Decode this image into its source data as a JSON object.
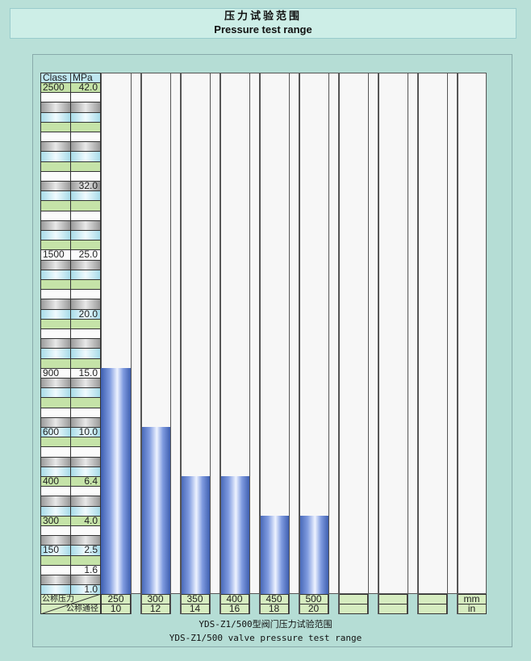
{
  "title": {
    "cn": "压力试验范围",
    "en": "Pressure test range"
  },
  "chart_data": {
    "type": "bar",
    "title": "YDS-Z1/500型阀门压力试验范围",
    "subtitle": "YDS-Z1/500 valve pressure test range",
    "header": {
      "class": "Class",
      "mpa": "MPa"
    },
    "scale_labels": [
      {
        "row": 0,
        "class": "2500",
        "mpa": "42.0"
      },
      {
        "row": 10,
        "class": "",
        "mpa": "32.0"
      },
      {
        "row": 17,
        "class": "1500",
        "mpa": "25.0"
      },
      {
        "row": 23,
        "class": "",
        "mpa": "20.0"
      },
      {
        "row": 29,
        "class": "900",
        "mpa": "15.0"
      },
      {
        "row": 35,
        "class": "600",
        "mpa": "10.0"
      },
      {
        "row": 40,
        "class": "400",
        "mpa": "6.4"
      },
      {
        "row": 44,
        "class": "300",
        "mpa": "4.0"
      },
      {
        "row": 47,
        "class": "150",
        "mpa": "2.5"
      },
      {
        "row": 49,
        "class": "",
        "mpa": "1.6"
      },
      {
        "row": 51,
        "class": "",
        "mpa": "1.0"
      }
    ],
    "row_label_pressure": "公称压力",
    "row_label_diameter": "公称通径",
    "categories_mm": [
      "250",
      "300",
      "350",
      "400",
      "450",
      "500",
      "",
      "",
      "",
      ""
    ],
    "categories_in": [
      "10",
      "12",
      "14",
      "16",
      "18",
      "20",
      "",
      "",
      "",
      ""
    ],
    "unit_mm": "mm",
    "unit_in": "in",
    "values_mpa": [
      15.0,
      10.0,
      6.4,
      6.4,
      4.0,
      4.0
    ],
    "colors": {
      "bar": "#4a6bbd",
      "green": "#c5e3a8",
      "blue": "#bfe6f0",
      "grey": "#b8b8b8",
      "white": "#fbfbfb"
    }
  }
}
